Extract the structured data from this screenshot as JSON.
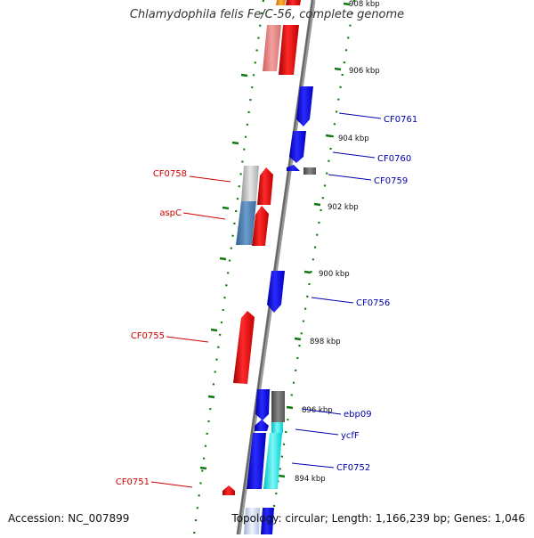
{
  "title": "Chlamydophila felis Fe/C-56, complete genome",
  "footer": {
    "accession": "Accession: NC_007899",
    "summary": "Topology: circular; Length: 1,166,239 bp; Genes: 1,046"
  },
  "colors": {
    "forward_gene": "#e00000",
    "reverse_gene": "#0000e0",
    "label_left": "#cc0000",
    "label_right": "#0000aa",
    "tick": "#117711",
    "backbone": "#777777"
  },
  "ruler_labels": [
    "908 kbp",
    "906 kbp",
    "904 kbp",
    "902 kbp",
    "900 kbp",
    "898 kbp",
    "896 kbp",
    "894 kbp"
  ],
  "gene_labels": [
    {
      "text": "CF0761",
      "side": "right"
    },
    {
      "text": "CF0760",
      "side": "right"
    },
    {
      "text": "CF0759",
      "side": "right"
    },
    {
      "text": "CF0758",
      "side": "left"
    },
    {
      "text": "aspC",
      "side": "left"
    },
    {
      "text": "CF0756",
      "side": "right"
    },
    {
      "text": "CF0755",
      "side": "left"
    },
    {
      "text": "ebp09",
      "side": "right"
    },
    {
      "text": "ycfF",
      "side": "right"
    },
    {
      "text": "CF0752",
      "side": "right"
    },
    {
      "text": "CF0751",
      "side": "left"
    }
  ]
}
